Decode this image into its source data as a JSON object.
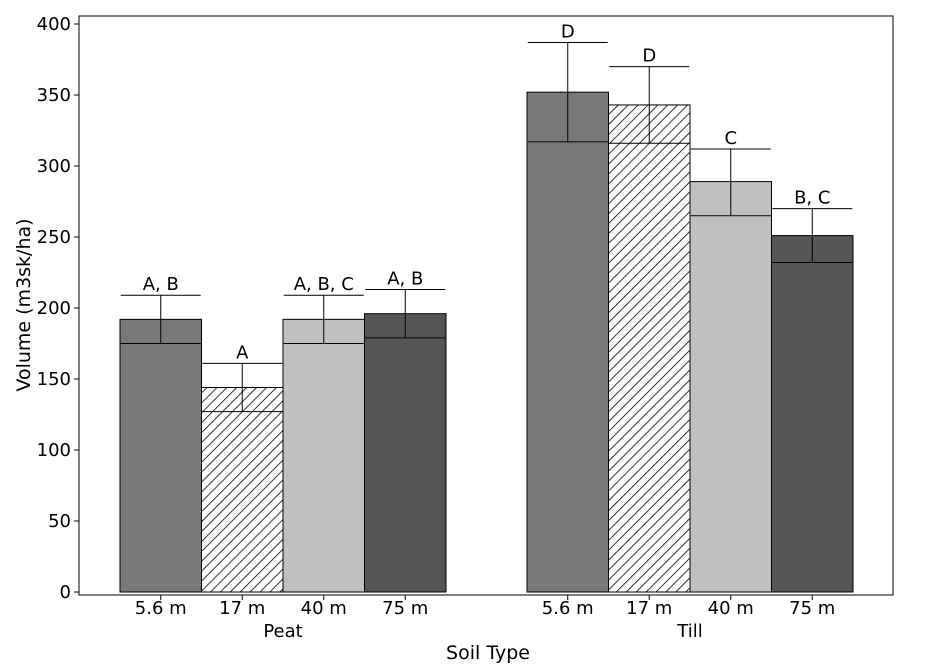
{
  "chart_data": {
    "type": "bar",
    "xlabel": "Soil Type",
    "ylabel": "Volume (m3sk/ha)",
    "ylim": [
      0,
      400
    ],
    "yticks": [
      0,
      50,
      100,
      150,
      200,
      250,
      300,
      350,
      400
    ],
    "grid": false,
    "groups": [
      {
        "name": "Peat",
        "bars": [
          {
            "label": "5.6 m",
            "value": 192,
            "err_low": 175,
            "err_high": 209,
            "annotation": "A, B",
            "fill": "#787878",
            "pattern": false
          },
          {
            "label": "17 m",
            "value": 144,
            "err_low": 127,
            "err_high": 161,
            "annotation": "A",
            "fill": "#ffffff",
            "pattern": true
          },
          {
            "label": "40 m",
            "value": 192,
            "err_low": 175,
            "err_high": 209,
            "annotation": "A, B, C",
            "fill": "#c0c0c0",
            "pattern": false
          },
          {
            "label": "75 m",
            "value": 196,
            "err_low": 179,
            "err_high": 213,
            "annotation": "A, B",
            "fill": "#555555",
            "pattern": false
          }
        ]
      },
      {
        "name": "Till",
        "bars": [
          {
            "label": "5.6 m",
            "value": 352,
            "err_low": 317,
            "err_high": 387,
            "annotation": "D",
            "fill": "#787878",
            "pattern": false
          },
          {
            "label": "17 m",
            "value": 343,
            "err_low": 316,
            "err_high": 370,
            "annotation": "D",
            "fill": "#ffffff",
            "pattern": true
          },
          {
            "label": "40 m",
            "value": 289,
            "err_low": 265,
            "err_high": 312,
            "annotation": "C",
            "fill": "#c0c0c0",
            "pattern": false
          },
          {
            "label": "75 m",
            "value": 251,
            "err_low": 232,
            "err_high": 270,
            "annotation": "B, C",
            "fill": "#555555",
            "pattern": false
          }
        ]
      }
    ]
  }
}
